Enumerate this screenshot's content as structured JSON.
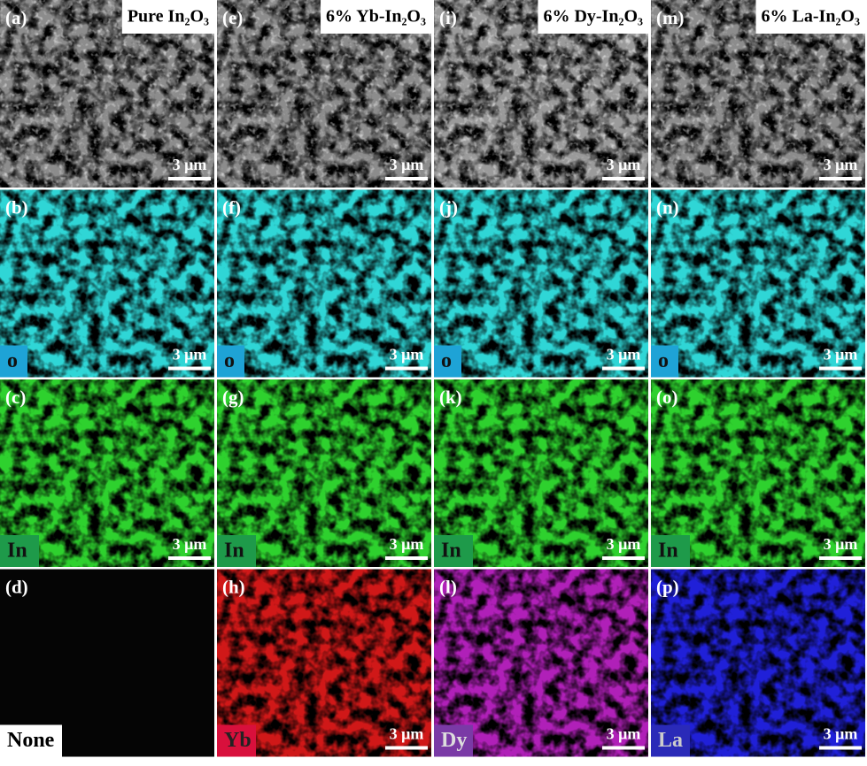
{
  "columns": [
    {
      "title": "Pure In₂O₃"
    },
    {
      "title": "6% Yb-In₂O₃"
    },
    {
      "title": "6% Dy-In₂O₃"
    },
    {
      "title": "6% La-In₂O₃"
    }
  ],
  "rows": [
    {
      "cells": [
        {
          "label": "(a)",
          "scale": "3 μm",
          "color": "#8c8c8c"
        },
        {
          "label": "(e)",
          "scale": "3 μm",
          "color": "#8c8c8c"
        },
        {
          "label": "(i)",
          "scale": "3 μm",
          "color": "#9a9a9a"
        },
        {
          "label": "(m)",
          "scale": "3 μm",
          "color": "#8c8c8c"
        }
      ]
    },
    {
      "cells": [
        {
          "label": "(b)",
          "scale": "3 μm",
          "color": "#2fd6d6",
          "tag": {
            "text": "o",
            "bg": "#1ea3d6",
            "fg": "#111"
          }
        },
        {
          "label": "(f)",
          "scale": "3 μm",
          "color": "#2fd6d6",
          "tag": {
            "text": "o",
            "bg": "#1ea3d6",
            "fg": "#111"
          }
        },
        {
          "label": "(j)",
          "scale": "3 μm",
          "color": "#2fd6d6",
          "tag": {
            "text": "o",
            "bg": "#1ea3d6",
            "fg": "#111"
          }
        },
        {
          "label": "(n)",
          "scale": "3 μm",
          "color": "#2fd6d6",
          "tag": {
            "text": "o",
            "bg": "#1ea3d6",
            "fg": "#111"
          }
        }
      ]
    },
    {
      "cells": [
        {
          "label": "(c)",
          "scale": "3 μm",
          "color": "#2ed12e",
          "tag": {
            "text": "In",
            "bg": "#1e9a4a",
            "fg": "#111"
          }
        },
        {
          "label": "(g)",
          "scale": "3 μm",
          "color": "#2ed12e",
          "tag": {
            "text": "In",
            "bg": "#1e9a4a",
            "fg": "#111"
          }
        },
        {
          "label": "(k)",
          "scale": "3 μm",
          "color": "#2ed12e",
          "tag": {
            "text": "In",
            "bg": "#1e9a4a",
            "fg": "#111"
          }
        },
        {
          "label": "(o)",
          "scale": "3 μm",
          "color": "#2ed12e",
          "tag": {
            "text": "In",
            "bg": "#1e9a4a",
            "fg": "#111"
          }
        }
      ]
    },
    {
      "cells": [
        {
          "label": "(d)",
          "color": "#050505",
          "tag": {
            "text": "None",
            "bg": "#ffffff",
            "fg": "#000"
          }
        },
        {
          "label": "(h)",
          "scale": "3 μm",
          "color": "#d01818",
          "tag": {
            "text": "Yb",
            "bg": "#d8103c",
            "fg": "#222"
          }
        },
        {
          "label": "(l)",
          "scale": "3 μm",
          "color": "#b020b8",
          "tag": {
            "text": "Dy",
            "bg": "#7a3aa6",
            "fg": "#ddd"
          }
        },
        {
          "label": "(p)",
          "scale": "3 μm",
          "color": "#2020d8",
          "tag": {
            "text": "La",
            "bg": "#2a2ab8",
            "fg": "#ccc"
          }
        }
      ]
    }
  ]
}
